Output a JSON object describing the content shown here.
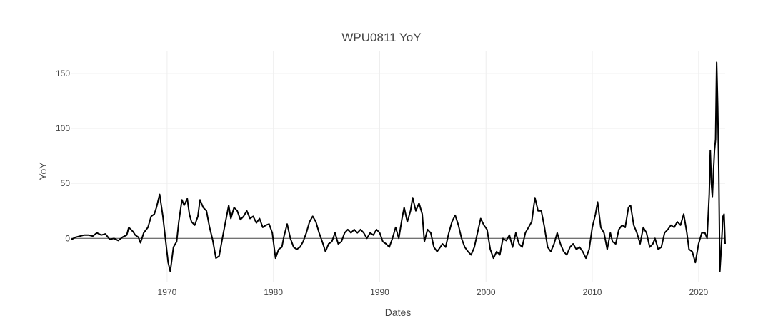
{
  "chart_data": {
    "type": "line",
    "title": "WPU0811 YoY",
    "xlabel": "Dates",
    "ylabel": "YoY",
    "xlim": [
      1961.0,
      2022.5
    ],
    "ylim": [
      -40,
      170
    ],
    "x_ticks": [
      1970,
      1980,
      1990,
      2000,
      2010,
      2020
    ],
    "y_ticks": [
      0,
      50,
      100,
      150
    ],
    "grid": true,
    "legend": "none",
    "series": [
      {
        "color": "#000000",
        "points": [
          [
            1961.0,
            -1
          ],
          [
            1961.4,
            1
          ],
          [
            1961.8,
            2
          ],
          [
            1962.2,
            3
          ],
          [
            1962.6,
            3
          ],
          [
            1963.0,
            2
          ],
          [
            1963.4,
            5
          ],
          [
            1963.8,
            3
          ],
          [
            1964.2,
            4
          ],
          [
            1964.6,
            -1
          ],
          [
            1965.0,
            0
          ],
          [
            1965.4,
            -2
          ],
          [
            1965.8,
            1
          ],
          [
            1966.2,
            3
          ],
          [
            1966.4,
            10
          ],
          [
            1966.8,
            6
          ],
          [
            1967.0,
            3
          ],
          [
            1967.3,
            1
          ],
          [
            1967.5,
            -4
          ],
          [
            1967.8,
            5
          ],
          [
            1968.2,
            10
          ],
          [
            1968.5,
            20
          ],
          [
            1968.8,
            22
          ],
          [
            1969.0,
            28
          ],
          [
            1969.3,
            40
          ],
          [
            1969.6,
            20
          ],
          [
            1969.9,
            -5
          ],
          [
            1970.1,
            -22
          ],
          [
            1970.3,
            -30
          ],
          [
            1970.6,
            -8
          ],
          [
            1970.9,
            -3
          ],
          [
            1971.1,
            15
          ],
          [
            1971.4,
            35
          ],
          [
            1971.6,
            30
          ],
          [
            1971.9,
            36
          ],
          [
            1972.1,
            22
          ],
          [
            1972.3,
            15
          ],
          [
            1972.6,
            12
          ],
          [
            1972.9,
            20
          ],
          [
            1973.1,
            35
          ],
          [
            1973.4,
            28
          ],
          [
            1973.7,
            25
          ],
          [
            1974.0,
            10
          ],
          [
            1974.3,
            -2
          ],
          [
            1974.6,
            -18
          ],
          [
            1974.9,
            -16
          ],
          [
            1975.2,
            0
          ],
          [
            1975.5,
            15
          ],
          [
            1975.8,
            30
          ],
          [
            1976.0,
            18
          ],
          [
            1976.3,
            28
          ],
          [
            1976.6,
            25
          ],
          [
            1976.9,
            17
          ],
          [
            1977.2,
            20
          ],
          [
            1977.5,
            25
          ],
          [
            1977.8,
            18
          ],
          [
            1978.1,
            20
          ],
          [
            1978.4,
            14
          ],
          [
            1978.7,
            18
          ],
          [
            1979.0,
            10
          ],
          [
            1979.3,
            12
          ],
          [
            1979.6,
            13
          ],
          [
            1979.9,
            5
          ],
          [
            1980.2,
            -18
          ],
          [
            1980.5,
            -10
          ],
          [
            1980.8,
            -8
          ],
          [
            1981.0,
            2
          ],
          [
            1981.3,
            13
          ],
          [
            1981.6,
            0
          ],
          [
            1981.9,
            -8
          ],
          [
            1982.2,
            -10
          ],
          [
            1982.5,
            -8
          ],
          [
            1982.8,
            -3
          ],
          [
            1983.1,
            5
          ],
          [
            1983.4,
            15
          ],
          [
            1983.7,
            20
          ],
          [
            1984.0,
            15
          ],
          [
            1984.3,
            5
          ],
          [
            1984.6,
            -3
          ],
          [
            1984.9,
            -12
          ],
          [
            1985.2,
            -5
          ],
          [
            1985.5,
            -3
          ],
          [
            1985.8,
            5
          ],
          [
            1986.1,
            -5
          ],
          [
            1986.4,
            -3
          ],
          [
            1986.7,
            5
          ],
          [
            1987.0,
            8
          ],
          [
            1987.3,
            5
          ],
          [
            1987.6,
            8
          ],
          [
            1987.9,
            5
          ],
          [
            1988.2,
            8
          ],
          [
            1988.5,
            5
          ],
          [
            1988.8,
            0
          ],
          [
            1989.1,
            5
          ],
          [
            1989.4,
            3
          ],
          [
            1989.7,
            8
          ],
          [
            1990.0,
            5
          ],
          [
            1990.3,
            -3
          ],
          [
            1990.6,
            -5
          ],
          [
            1990.9,
            -8
          ],
          [
            1991.2,
            0
          ],
          [
            1991.5,
            10
          ],
          [
            1991.8,
            0
          ],
          [
            1992.1,
            18
          ],
          [
            1992.3,
            28
          ],
          [
            1992.6,
            15
          ],
          [
            1992.9,
            25
          ],
          [
            1993.1,
            37
          ],
          [
            1993.4,
            25
          ],
          [
            1993.7,
            32
          ],
          [
            1994.0,
            22
          ],
          [
            1994.2,
            -3
          ],
          [
            1994.5,
            8
          ],
          [
            1994.8,
            5
          ],
          [
            1995.1,
            -8
          ],
          [
            1995.4,
            -12
          ],
          [
            1995.7,
            -8
          ],
          [
            1995.9,
            -5
          ],
          [
            1996.2,
            -8
          ],
          [
            1996.5,
            5
          ],
          [
            1996.8,
            15
          ],
          [
            1997.1,
            21
          ],
          [
            1997.4,
            12
          ],
          [
            1997.7,
            0
          ],
          [
            1998.0,
            -8
          ],
          [
            1998.3,
            -12
          ],
          [
            1998.6,
            -15
          ],
          [
            1998.9,
            -8
          ],
          [
            1999.2,
            5
          ],
          [
            1999.5,
            18
          ],
          [
            1999.8,
            12
          ],
          [
            2000.1,
            8
          ],
          [
            2000.4,
            -10
          ],
          [
            2000.7,
            -18
          ],
          [
            2001.0,
            -12
          ],
          [
            2001.3,
            -15
          ],
          [
            2001.6,
            0
          ],
          [
            2001.9,
            -2
          ],
          [
            2002.2,
            3
          ],
          [
            2002.5,
            -8
          ],
          [
            2002.8,
            5
          ],
          [
            2003.1,
            -5
          ],
          [
            2003.4,
            -8
          ],
          [
            2003.7,
            5
          ],
          [
            2004.0,
            10
          ],
          [
            2004.3,
            15
          ],
          [
            2004.6,
            37
          ],
          [
            2004.9,
            25
          ],
          [
            2005.2,
            25
          ],
          [
            2005.5,
            10
          ],
          [
            2005.8,
            -8
          ],
          [
            2006.1,
            -12
          ],
          [
            2006.4,
            -5
          ],
          [
            2006.7,
            5
          ],
          [
            2007.0,
            -5
          ],
          [
            2007.3,
            -12
          ],
          [
            2007.6,
            -15
          ],
          [
            2007.9,
            -8
          ],
          [
            2008.2,
            -5
          ],
          [
            2008.5,
            -10
          ],
          [
            2008.8,
            -8
          ],
          [
            2009.1,
            -12
          ],
          [
            2009.4,
            -18
          ],
          [
            2009.7,
            -10
          ],
          [
            2010.0,
            10
          ],
          [
            2010.3,
            22
          ],
          [
            2010.5,
            33
          ],
          [
            2010.8,
            10
          ],
          [
            2011.1,
            5
          ],
          [
            2011.4,
            -10
          ],
          [
            2011.7,
            5
          ],
          [
            2011.9,
            -3
          ],
          [
            2012.2,
            -5
          ],
          [
            2012.5,
            8
          ],
          [
            2012.8,
            12
          ],
          [
            2013.1,
            10
          ],
          [
            2013.4,
            28
          ],
          [
            2013.6,
            30
          ],
          [
            2013.9,
            12
          ],
          [
            2014.2,
            5
          ],
          [
            2014.5,
            -5
          ],
          [
            2014.8,
            10
          ],
          [
            2015.1,
            5
          ],
          [
            2015.4,
            -8
          ],
          [
            2015.7,
            -5
          ],
          [
            2015.9,
            0
          ],
          [
            2016.2,
            -10
          ],
          [
            2016.5,
            -8
          ],
          [
            2016.8,
            5
          ],
          [
            2017.1,
            8
          ],
          [
            2017.4,
            12
          ],
          [
            2017.7,
            10
          ],
          [
            2018.0,
            15
          ],
          [
            2018.3,
            12
          ],
          [
            2018.6,
            22
          ],
          [
            2018.9,
            5
          ],
          [
            2019.1,
            -10
          ],
          [
            2019.4,
            -12
          ],
          [
            2019.7,
            -22
          ],
          [
            2020.0,
            -5
          ],
          [
            2020.3,
            5
          ],
          [
            2020.6,
            5
          ],
          [
            2020.8,
            0
          ],
          [
            2021.0,
            40
          ],
          [
            2021.1,
            80
          ],
          [
            2021.2,
            50
          ],
          [
            2021.3,
            38
          ],
          [
            2021.4,
            60
          ],
          [
            2021.5,
            80
          ],
          [
            2021.6,
            90
          ],
          [
            2021.7,
            160
          ],
          [
            2021.8,
            120
          ],
          [
            2021.9,
            60
          ],
          [
            2022.0,
            -30
          ],
          [
            2022.1,
            -15
          ],
          [
            2022.3,
            20
          ],
          [
            2022.4,
            22
          ],
          [
            2022.5,
            -5
          ]
        ]
      }
    ]
  }
}
